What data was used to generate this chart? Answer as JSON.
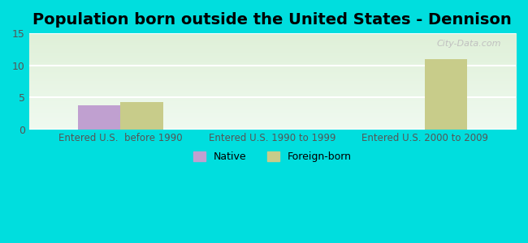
{
  "title": "Population born outside the United States - Dennison",
  "groups": [
    "Entered U.S.  before 1990",
    "Entered U.S. 1990 to 1999",
    "Entered U.S. 2000 to 2009"
  ],
  "native_values": [
    3.7,
    0,
    0
  ],
  "foreign_values": [
    4.3,
    0,
    11.0
  ],
  "native_color": "#c0a0d0",
  "foreign_color": "#c8cc8a",
  "ylim_max": 15,
  "yticks": [
    0,
    5,
    10,
    15
  ],
  "bg_outer": "#00dede",
  "bg_inner_top": "#dff0d8",
  "bg_inner_bottom": "#f0faf0",
  "bar_width": 0.28,
  "legend_native": "Native",
  "legend_foreign": "Foreign-born",
  "watermark": "City-Data.com",
  "title_fontsize": 14,
  "tick_fontsize": 9,
  "xtick_fontsize": 8.5
}
